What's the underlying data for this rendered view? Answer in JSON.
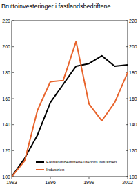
{
  "chart_data": {
    "type": "line",
    "title": "Bruttoinvesteringer i fastlandsbedriftene",
    "x": [
      1993,
      1994,
      1995,
      1996,
      1997,
      1998,
      1999,
      2000,
      2001,
      2002
    ],
    "series": [
      {
        "name": "Fastlandsbedriftene utenom industrien",
        "color": "#000000",
        "values": [
          100,
          114,
          132,
          157,
          171,
          185,
          187,
          193,
          185,
          186
        ]
      },
      {
        "name": "Industrien",
        "color": "#e8642c",
        "values": [
          100,
          112,
          151,
          173,
          174,
          204,
          156,
          143,
          157,
          180
        ]
      }
    ],
    "xlim": [
      1993,
      2002
    ],
    "xticks": [
      1993,
      1996,
      1999,
      2002
    ],
    "ylim": [
      100,
      220
    ],
    "yticks": [
      100,
      120,
      140,
      160,
      180,
      200,
      220
    ],
    "grid": false,
    "legend": "lower right"
  }
}
